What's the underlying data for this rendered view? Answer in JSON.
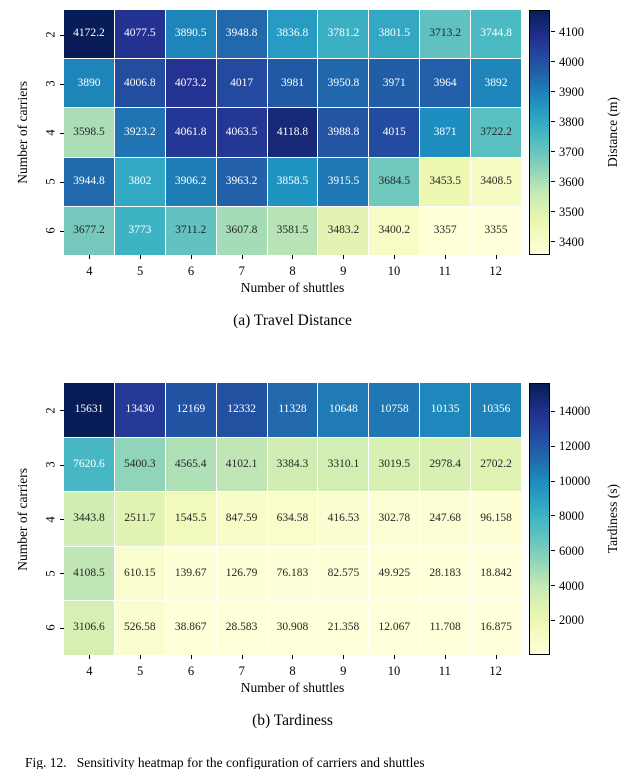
{
  "figure": {
    "caption": "Fig. 12.   Sensitivity heatmap for the configuration of carriers and shuttles"
  },
  "chart_data": [
    {
      "type": "heatmap",
      "title": "(a) Travel Distance",
      "xlabel": "Number of shuttles",
      "ylabel": "Number of carriers",
      "colorbar_label": "Distance (m)",
      "colormap": "YlGnBu",
      "x_ticks": [
        "4",
        "5",
        "6",
        "7",
        "8",
        "9",
        "10",
        "11",
        "12"
      ],
      "y_ticks": [
        "2",
        "3",
        "4",
        "5",
        "6"
      ],
      "vmin": 3355,
      "vmax": 4172.2,
      "colorbar_ticks": [
        3400,
        3500,
        3600,
        3700,
        3800,
        3900,
        4000,
        4100
      ],
      "values": [
        [
          "4172.2",
          "4077.5",
          "3890.5",
          "3948.8",
          "3836.8",
          "3781.2",
          "3801.5",
          "3713.2",
          "3744.8"
        ],
        [
          "3890",
          "4006.8",
          "4073.2",
          "4017",
          "3981",
          "3950.8",
          "3971",
          "3964",
          "3892"
        ],
        [
          "3598.5",
          "3923.2",
          "4061.8",
          "4063.5",
          "4118.8",
          "3988.8",
          "4015",
          "3871",
          "3722.2"
        ],
        [
          "3944.8",
          "3802",
          "3906.2",
          "3963.2",
          "3858.5",
          "3915.5",
          "3684.5",
          "3453.5",
          "3408.5"
        ],
        [
          "3677.2",
          "3773",
          "3711.2",
          "3607.8",
          "3581.5",
          "3483.2",
          "3400.2",
          "3357",
          "3355"
        ]
      ]
    },
    {
      "type": "heatmap",
      "title": "(b) Tardiness",
      "xlabel": "Number of shuttles",
      "ylabel": "Number of carriers",
      "colorbar_label": "Tardiness (s)",
      "colormap": "YlGnBu",
      "x_ticks": [
        "4",
        "5",
        "6",
        "7",
        "8",
        "9",
        "10",
        "11",
        "12"
      ],
      "y_ticks": [
        "2",
        "3",
        "4",
        "5",
        "6"
      ],
      "vmin": 11.708,
      "vmax": 15631,
      "colorbar_ticks": [
        2000,
        4000,
        6000,
        8000,
        10000,
        12000,
        14000
      ],
      "values": [
        [
          "15631",
          "13430",
          "12169",
          "12332",
          "11328",
          "10648",
          "10758",
          "10135",
          "10356"
        ],
        [
          "7620.6",
          "5400.3",
          "4565.4",
          "4102.1",
          "3384.3",
          "3310.1",
          "3019.5",
          "2978.4",
          "2702.2"
        ],
        [
          "3443.8",
          "2511.7",
          "1545.5",
          "847.59",
          "634.58",
          "416.53",
          "302.78",
          "247.68",
          "96.158"
        ],
        [
          "4108.5",
          "610.15",
          "139.67",
          "126.79",
          "76.183",
          "82.575",
          "49.925",
          "28.183",
          "18.842"
        ],
        [
          "3106.6",
          "526.58",
          "38.867",
          "28.583",
          "30.908",
          "21.358",
          "12.067",
          "11.708",
          "16.875"
        ]
      ]
    }
  ]
}
